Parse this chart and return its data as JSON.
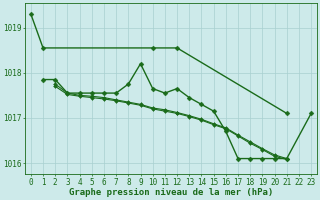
{
  "title": "Graphe pression niveau de la mer (hPa)",
  "xlabel_hours": [
    0,
    1,
    2,
    3,
    4,
    5,
    6,
    7,
    8,
    9,
    10,
    11,
    12,
    13,
    14,
    15,
    16,
    17,
    18,
    19,
    20,
    21,
    22,
    23
  ],
  "series": [
    {
      "name": "top_line",
      "color": "#1a6b1a",
      "linewidth": 1.0,
      "marker": "D",
      "markersize": 2.5,
      "x": [
        0,
        1,
        10,
        12,
        21
      ],
      "y": [
        1019.3,
        1018.55,
        1018.55,
        1018.55,
        1017.1
      ]
    },
    {
      "name": "mid_line",
      "color": "#1a6b1a",
      "linewidth": 1.0,
      "marker": "D",
      "markersize": 2.5,
      "x": [
        1,
        2,
        3,
        4,
        5,
        6,
        7,
        8,
        9,
        10,
        11,
        12,
        13,
        14,
        15,
        16,
        17,
        18,
        19,
        20,
        21,
        23
      ],
      "y": [
        1017.85,
        1017.85,
        1017.55,
        1017.55,
        1017.55,
        1017.55,
        1017.55,
        1017.75,
        1018.2,
        1017.65,
        1017.55,
        1017.65,
        1017.45,
        1017.3,
        1017.15,
        1016.7,
        1016.1,
        1016.1,
        1016.1,
        1016.1,
        1016.1,
        1017.1
      ]
    },
    {
      "name": "trend_line1",
      "color": "#1a6b1a",
      "linewidth": 0.8,
      "marker": "D",
      "markersize": 2.0,
      "x": [
        2,
        3,
        4,
        5,
        6,
        7,
        8,
        9,
        10,
        11,
        12,
        13,
        14,
        15,
        16,
        17,
        18,
        19,
        20,
        21
      ],
      "y": [
        1017.75,
        1017.55,
        1017.5,
        1017.48,
        1017.45,
        1017.4,
        1017.35,
        1017.3,
        1017.22,
        1017.18,
        1017.12,
        1017.05,
        1016.97,
        1016.87,
        1016.78,
        1016.62,
        1016.47,
        1016.32,
        1016.18,
        1016.1
      ]
    },
    {
      "name": "trend_line2",
      "color": "#1a6b1a",
      "linewidth": 0.8,
      "marker": "D",
      "markersize": 2.0,
      "x": [
        2,
        3,
        4,
        5,
        6,
        7,
        8,
        9,
        10,
        11,
        12,
        13,
        14,
        15,
        16,
        17,
        18,
        19,
        20,
        21
      ],
      "y": [
        1017.7,
        1017.52,
        1017.48,
        1017.45,
        1017.42,
        1017.38,
        1017.33,
        1017.28,
        1017.2,
        1017.15,
        1017.1,
        1017.03,
        1016.95,
        1016.85,
        1016.76,
        1016.6,
        1016.44,
        1016.3,
        1016.15,
        1016.08
      ]
    }
  ],
  "ylim": [
    1015.75,
    1019.55
  ],
  "yticks": [
    1016,
    1017,
    1018,
    1019
  ],
  "xlim": [
    -0.5,
    23.5
  ],
  "bg_color": "#cdeaea",
  "grid_color": "#a8d0d0",
  "line_color": "#1a6b1a",
  "title_color": "#1a6b1a",
  "tick_color": "#1a6b1a",
  "title_fontsize": 6.5,
  "tick_fontsize": 5.5
}
